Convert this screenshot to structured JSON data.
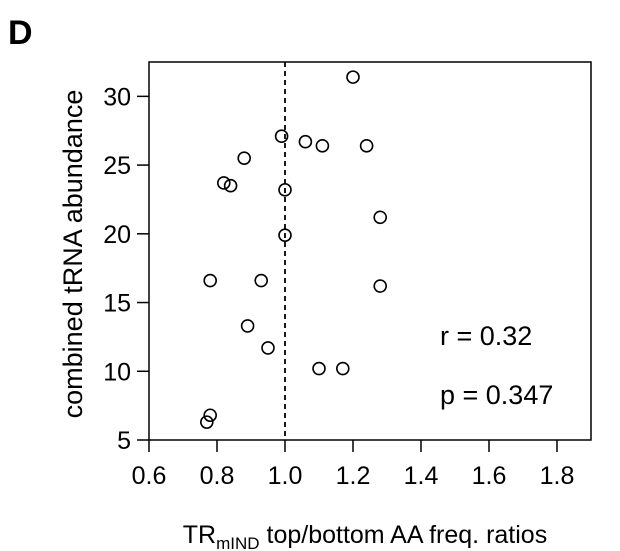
{
  "panel_label": "D",
  "chart_data": {
    "type": "scatter",
    "title": "",
    "xlabel": {
      "main": "TR",
      "subscript": "mIND",
      "rest": " top/bottom AA freq. ratios"
    },
    "ylabel": "combined tRNA abundance",
    "xlim": [
      0.6,
      1.9
    ],
    "ylim": [
      5,
      32.5
    ],
    "xticks": [
      0.6,
      0.8,
      1.0,
      1.2,
      1.4,
      1.6,
      1.8
    ],
    "xtick_labels": [
      "0.6",
      "0.8",
      "1.0",
      "1.2",
      "1.4",
      "1.6",
      "1.8"
    ],
    "yticks": [
      5,
      10,
      15,
      20,
      25,
      30
    ],
    "ytick_labels": [
      "5",
      "10",
      "15",
      "20",
      "25",
      "30"
    ],
    "reference_line": {
      "x": 1.0,
      "style": "dashed"
    },
    "grid": false,
    "points": [
      {
        "x": 1.2,
        "y": 31.4
      },
      {
        "x": 0.99,
        "y": 27.1
      },
      {
        "x": 1.06,
        "y": 26.7
      },
      {
        "x": 1.11,
        "y": 26.4
      },
      {
        "x": 1.24,
        "y": 26.4
      },
      {
        "x": 0.88,
        "y": 25.5
      },
      {
        "x": 0.82,
        "y": 23.7
      },
      {
        "x": 0.84,
        "y": 23.5
      },
      {
        "x": 1.0,
        "y": 23.2
      },
      {
        "x": 1.28,
        "y": 21.2
      },
      {
        "x": 1.0,
        "y": 19.9
      },
      {
        "x": 0.78,
        "y": 16.6
      },
      {
        "x": 0.93,
        "y": 16.6
      },
      {
        "x": 1.28,
        "y": 16.2
      },
      {
        "x": 0.89,
        "y": 13.3
      },
      {
        "x": 0.95,
        "y": 11.7
      },
      {
        "x": 1.1,
        "y": 10.2
      },
      {
        "x": 1.17,
        "y": 10.2
      },
      {
        "x": 0.78,
        "y": 6.8
      },
      {
        "x": 0.77,
        "y": 6.3
      }
    ],
    "annotations": [
      {
        "text": "r = 0.32"
      },
      {
        "text": "p = 0.347"
      }
    ]
  }
}
